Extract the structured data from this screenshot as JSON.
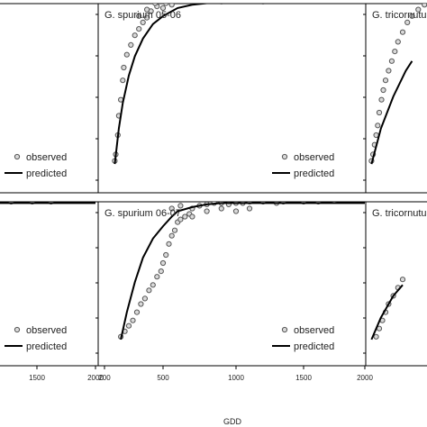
{
  "chart_data": [
    {
      "type": "line",
      "title": "",
      "legend": [
        "observed",
        "predicted"
      ],
      "legend_position": "bottom-right",
      "xlabel": "",
      "ylabel": "",
      "xlim": [
        200,
        2000
      ],
      "xticks": [],
      "series": [
        {
          "name": "observed",
          "kind": "scatter",
          "points": []
        },
        {
          "name": "predicted",
          "kind": "line",
          "points": [
            [
              200,
              1.0
            ],
            [
              2000,
              1.0
            ]
          ]
        }
      ]
    },
    {
      "type": "line",
      "title": "G. spurium 05-06",
      "legend": [
        "observed",
        "predicted"
      ],
      "legend_position": "bottom-right",
      "xlabel": "",
      "ylabel": "",
      "xlim": [
        200,
        2000
      ],
      "xticks": [],
      "series": [
        {
          "name": "observed",
          "kind": "scatter",
          "points": [
            [
              260,
              0.02
            ],
            [
              265,
              0.06
            ],
            [
              275,
              0.18
            ],
            [
              280,
              0.3
            ],
            [
              290,
              0.4
            ],
            [
              300,
              0.52
            ],
            [
              305,
              0.6
            ],
            [
              320,
              0.68
            ],
            [
              340,
              0.74
            ],
            [
              360,
              0.8
            ],
            [
              380,
              0.84
            ],
            [
              400,
              0.88
            ],
            [
              420,
              0.91
            ],
            [
              440,
              0.95
            ],
            [
              470,
              0.98
            ],
            [
              520,
              1.0
            ],
            [
              560,
              1.02
            ],
            [
              600,
              1.02
            ],
            [
              650,
              1.02
            ],
            [
              700,
              1.01
            ],
            [
              800,
              1.02
            ],
            [
              900,
              1.01
            ],
            [
              1000,
              1.02
            ],
            [
              1100,
              1.02
            ],
            [
              1200,
              1.01
            ],
            [
              380,
              0.92
            ],
            [
              420,
              0.96
            ],
            [
              460,
              1.0
            ],
            [
              500,
              0.97
            ],
            [
              560,
              0.99
            ]
          ]
        },
        {
          "name": "predicted",
          "kind": "line",
          "points": [
            [
              260,
              0.0
            ],
            [
              280,
              0.22
            ],
            [
              300,
              0.38
            ],
            [
              330,
              0.55
            ],
            [
              360,
              0.67
            ],
            [
              400,
              0.78
            ],
            [
              450,
              0.87
            ],
            [
              500,
              0.92
            ],
            [
              600,
              0.97
            ],
            [
              700,
              0.99
            ],
            [
              800,
              1.0
            ],
            [
              1000,
              1.0
            ],
            [
              1400,
              1.0
            ],
            [
              2000,
              1.0
            ]
          ]
        }
      ]
    },
    {
      "type": "line",
      "title": "G. tricornutum",
      "legend": [],
      "legend_position": "",
      "xlabel": "",
      "ylabel": "",
      "xlim": [
        200,
        2000
      ],
      "xticks": [],
      "series": [
        {
          "name": "observed",
          "kind": "scatter",
          "points": [
            [
              230,
              0.02
            ],
            [
              235,
              0.06
            ],
            [
              240,
              0.12
            ],
            [
              245,
              0.18
            ],
            [
              250,
              0.24
            ],
            [
              255,
              0.32
            ],
            [
              262,
              0.4
            ],
            [
              268,
              0.46
            ],
            [
              275,
              0.52
            ],
            [
              285,
              0.58
            ],
            [
              295,
              0.64
            ],
            [
              305,
              0.7
            ],
            [
              315,
              0.76
            ],
            [
              330,
              0.82
            ],
            [
              345,
              0.88
            ],
            [
              360,
              0.92
            ],
            [
              380,
              0.96
            ],
            [
              400,
              0.99
            ],
            [
              420,
              1.01
            ]
          ]
        },
        {
          "name": "predicted",
          "kind": "line",
          "points": [
            [
              230,
              0.0
            ],
            [
              260,
              0.22
            ],
            [
              300,
              0.42
            ],
            [
              340,
              0.58
            ],
            [
              360,
              0.64
            ]
          ]
        }
      ]
    },
    {
      "type": "line",
      "title": "",
      "legend": [
        "observed",
        "predicted"
      ],
      "legend_position": "bottom-right",
      "xlabel": "",
      "ylabel": "",
      "xlim": [
        200,
        2000
      ],
      "xticks": [
        1500,
        2000
      ],
      "series": [
        {
          "name": "observed",
          "kind": "scatter",
          "points": [
            [
              1150,
              1.01
            ],
            [
              1280,
              1.01
            ],
            [
              1460,
              1.01
            ],
            [
              1620,
              1.01
            ]
          ]
        },
        {
          "name": "predicted",
          "kind": "line",
          "points": [
            [
              200,
              1.0
            ],
            [
              2000,
              1.0
            ]
          ]
        }
      ]
    },
    {
      "type": "line",
      "title": "G. spurium 06-07",
      "legend": [
        "observed",
        "predicted"
      ],
      "legend_position": "bottom-right",
      "xlabel": "GDD",
      "ylabel": "",
      "xlim": [
        200,
        2000
      ],
      "xticks": [
        200,
        500,
        1000,
        1500,
        2000
      ],
      "xtick_labels": [
        "200",
        "500",
        "1000",
        "1500",
        "2000"
      ],
      "series": [
        {
          "name": "observed",
          "kind": "scatter",
          "points": [
            [
              290,
              0.02
            ],
            [
              310,
              0.06
            ],
            [
              330,
              0.1
            ],
            [
              350,
              0.14
            ],
            [
              370,
              0.2
            ],
            [
              390,
              0.26
            ],
            [
              410,
              0.3
            ],
            [
              430,
              0.36
            ],
            [
              450,
              0.4
            ],
            [
              470,
              0.46
            ],
            [
              490,
              0.5
            ],
            [
              500,
              0.56
            ],
            [
              520,
              0.62
            ],
            [
              540,
              0.7
            ],
            [
              560,
              0.76
            ],
            [
              580,
              0.8
            ],
            [
              600,
              0.86
            ],
            [
              620,
              0.88
            ],
            [
              650,
              0.9
            ],
            [
              680,
              0.92
            ],
            [
              700,
              0.96
            ],
            [
              750,
              0.98
            ],
            [
              800,
              0.99
            ],
            [
              850,
              1.0
            ],
            [
              900,
              1.0
            ],
            [
              950,
              0.99
            ],
            [
              1000,
              1.0
            ],
            [
              1050,
              1.0
            ],
            [
              1100,
              1.01
            ],
            [
              1200,
              1.01
            ],
            [
              1300,
              1.0
            ],
            [
              1350,
              1.01
            ],
            [
              1500,
              1.01
            ],
            [
              1620,
              1.01
            ],
            [
              1750,
              1.02
            ],
            [
              560,
              0.96
            ],
            [
              620,
              0.98
            ],
            [
              700,
              0.9
            ],
            [
              800,
              0.94
            ],
            [
              900,
              0.96
            ],
            [
              1000,
              0.94
            ],
            [
              1100,
              0.96
            ]
          ]
        },
        {
          "name": "predicted",
          "kind": "line",
          "points": [
            [
              290,
              0.0
            ],
            [
              320,
              0.2
            ],
            [
              360,
              0.42
            ],
            [
              400,
              0.6
            ],
            [
              450,
              0.74
            ],
            [
              500,
              0.83
            ],
            [
              560,
              0.9
            ],
            [
              600,
              0.94
            ],
            [
              700,
              0.97
            ],
            [
              800,
              0.99
            ],
            [
              900,
              1.0
            ],
            [
              1200,
              1.0
            ],
            [
              1600,
              1.0
            ],
            [
              2000,
              1.0
            ]
          ]
        }
      ]
    },
    {
      "type": "line",
      "title": "G. tricornutum",
      "legend": [],
      "legend_position": "",
      "xlabel": "",
      "ylabel": "",
      "xlim": [
        200,
        2000
      ],
      "xticks": [],
      "series": [
        {
          "name": "observed",
          "kind": "scatter",
          "points": [
            [
              245,
              0.02
            ],
            [
              255,
              0.08
            ],
            [
              265,
              0.14
            ],
            [
              275,
              0.2
            ],
            [
              285,
              0.26
            ],
            [
              300,
              0.32
            ],
            [
              315,
              0.38
            ],
            [
              330,
              0.44
            ]
          ]
        },
        {
          "name": "predicted",
          "kind": "line",
          "points": [
            [
              230,
              0.0
            ],
            [
              260,
              0.16
            ],
            [
              300,
              0.32
            ],
            [
              330,
              0.4
            ]
          ]
        }
      ]
    }
  ],
  "labels": {
    "x_axis_title": "GDD",
    "left_tick_1500": "1500",
    "left_tick_2000": "2000",
    "mid_tick_200": "200",
    "mid_tick_500": "500",
    "mid_tick_1000": "1000",
    "mid_tick_1500": "1500",
    "mid_tick_2000": "2000"
  },
  "colors": {
    "line": "#000000",
    "marker_fill": "#d9d9d9",
    "marker_stroke": "#555555"
  }
}
